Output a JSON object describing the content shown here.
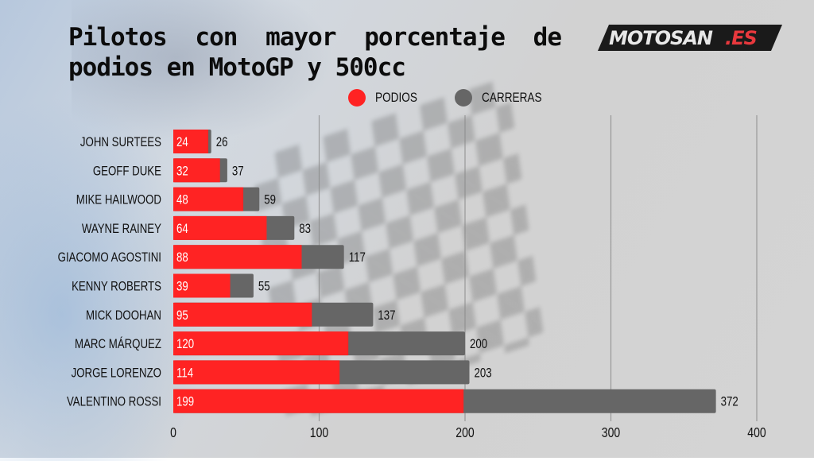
{
  "title": {
    "line1": "Pilotos con mayor porcentaje de",
    "line2": "podios en MotoGP y 500cc"
  },
  "logo": {
    "text_main": "MOTOSAN",
    "text_suffix": ".ES",
    "colors": {
      "bg": "#1a1a1a",
      "main": "#e8e8e8",
      "suffix": "#e8383d"
    }
  },
  "legend": {
    "items": [
      {
        "label": "PODIOS",
        "color": "#ff2323"
      },
      {
        "label": "CARRERAS",
        "color": "#666666"
      }
    ]
  },
  "chart_data": {
    "type": "bar",
    "orientation": "horizontal",
    "stacked": false,
    "overlay": true,
    "title": "Pilotos con mayor porcentaje de podios en MotoGP y 500cc",
    "xlabel": "",
    "ylabel": "",
    "xlim": [
      0,
      400
    ],
    "xticks": [
      0,
      100,
      200,
      300,
      400
    ],
    "grid": true,
    "legend_position": "top-right",
    "categories": [
      "JOHN SURTEES",
      "GEOFF DUKE",
      "MIKE HAILWOOD",
      "WAYNE RAINEY",
      "GIACOMO AGOSTINI",
      "KENNY ROBERTS",
      "MICK DOOHAN",
      "MARC MÁRQUEZ",
      "JORGE LORENZO",
      "VALENTINO ROSSI"
    ],
    "series": [
      {
        "name": "CARRERAS",
        "color": "#666666",
        "values": [
          26,
          37,
          59,
          83,
          117,
          55,
          137,
          200,
          203,
          372
        ]
      },
      {
        "name": "PODIOS",
        "color": "#ff2323",
        "values": [
          24,
          32,
          48,
          64,
          88,
          39,
          95,
          120,
          114,
          199
        ]
      }
    ]
  }
}
